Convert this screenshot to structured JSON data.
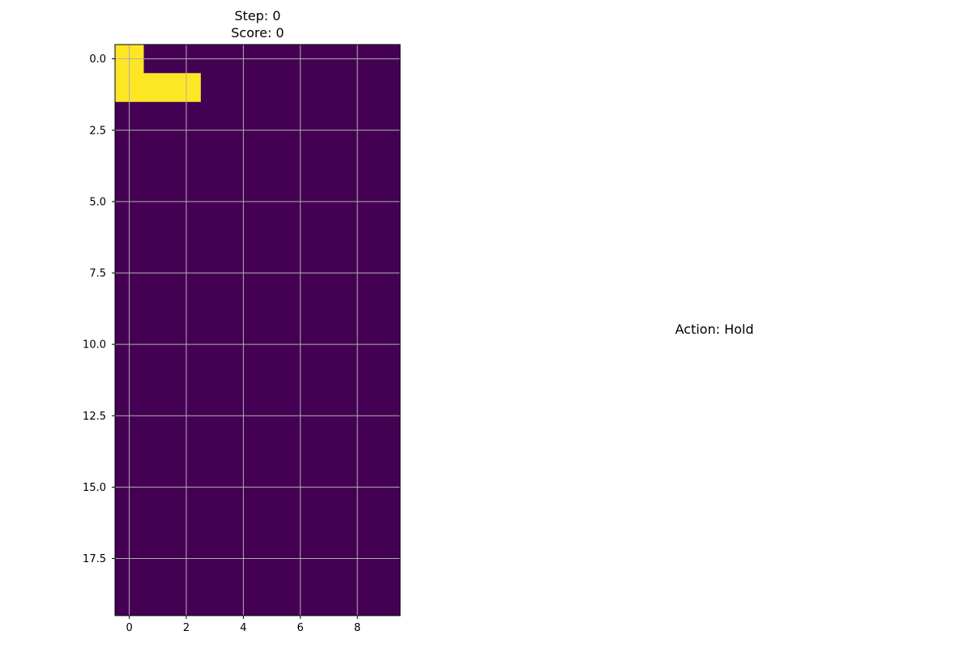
{
  "header": {
    "step_text": "Step: 0",
    "score_text": "Score: 0"
  },
  "action": {
    "text": "Action: Hold"
  },
  "board": {
    "rows": 20,
    "cols": 10,
    "filled_cells": [
      [
        0,
        0
      ],
      [
        1,
        0
      ],
      [
        1,
        1
      ],
      [
        1,
        2
      ]
    ],
    "empty_color": "#440154",
    "filled_color": "#fde725",
    "grid_color": "#b0b0b0",
    "x_ticks": [
      {
        "value": 0,
        "label": "0"
      },
      {
        "value": 2,
        "label": "2"
      },
      {
        "value": 4,
        "label": "4"
      },
      {
        "value": 6,
        "label": "6"
      },
      {
        "value": 8,
        "label": "8"
      }
    ],
    "y_ticks": [
      {
        "value": 0.0,
        "label": "0.0"
      },
      {
        "value": 2.5,
        "label": "2.5"
      },
      {
        "value": 5.0,
        "label": "5.0"
      },
      {
        "value": 7.5,
        "label": "7.5"
      },
      {
        "value": 10.0,
        "label": "10.0"
      },
      {
        "value": 12.5,
        "label": "12.5"
      },
      {
        "value": 15.0,
        "label": "15.0"
      },
      {
        "value": 17.5,
        "label": "17.5"
      }
    ]
  }
}
